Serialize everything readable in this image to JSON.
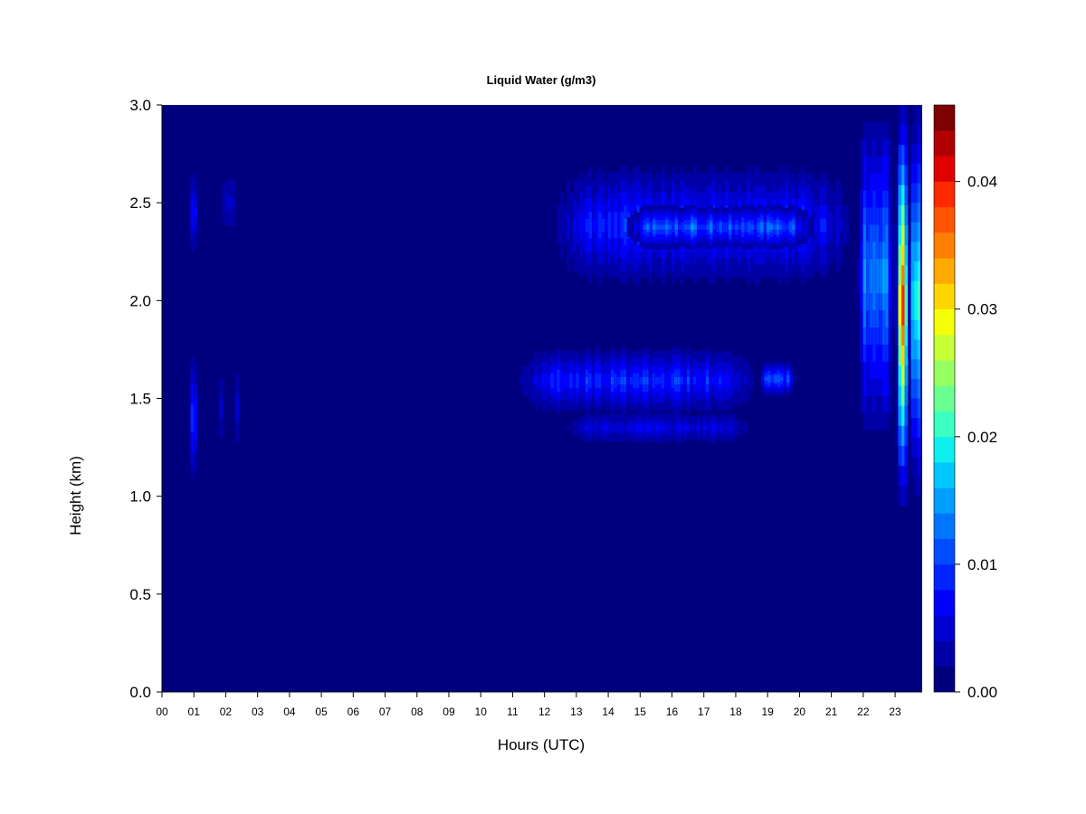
{
  "chart_data": {
    "type": "heatmap",
    "title": "Liquid Water (g/m3)",
    "xlabel": "Hours (UTC)",
    "ylabel": "Height (km)",
    "xlim": [
      0,
      23.85
    ],
    "ylim": [
      0,
      3.0
    ],
    "x_ticks": [
      "00",
      "01",
      "02",
      "03",
      "04",
      "05",
      "06",
      "07",
      "08",
      "09",
      "10",
      "11",
      "12",
      "13",
      "14",
      "15",
      "16",
      "17",
      "18",
      "19",
      "20",
      "21",
      "22",
      "23"
    ],
    "y_ticks": [
      "0.0",
      "0.5",
      "1.0",
      "1.5",
      "2.0",
      "2.5",
      "3.0"
    ],
    "colorbar": {
      "min": 0.0,
      "max": 0.046,
      "ticks": [
        "0.00",
        "0.01",
        "0.02",
        "0.03",
        "0.04"
      ],
      "colors": [
        "#00007F",
        "#0000A6",
        "#0000D2",
        "#0000FF",
        "#0024FF",
        "#004DFF",
        "#0076FF",
        "#009EFF",
        "#00C8FF",
        "#0DF0EE",
        "#3BFFC0",
        "#6AFF91",
        "#98FF63",
        "#C6FF35",
        "#F5FF07",
        "#FFD500",
        "#FFAA00",
        "#FF7F00",
        "#FF5500",
        "#FF2A00",
        "#E10000",
        "#B10000",
        "#7F0000"
      ]
    },
    "features": [
      {
        "x": [
          0.8,
          1.05
        ],
        "y": [
          1.05,
          1.75
        ],
        "peak": 0.013
      },
      {
        "x": [
          0.8,
          1.05
        ],
        "y": [
          2.2,
          2.7
        ],
        "peak": 0.01
      },
      {
        "x": [
          1.7,
          1.85
        ],
        "y": [
          1.2,
          1.7
        ],
        "peak": 0.008
      },
      {
        "x": [
          2.2,
          2.35
        ],
        "y": [
          1.2,
          1.7
        ],
        "peak": 0.008
      },
      {
        "x": [
          1.8,
          2.3
        ],
        "y": [
          2.3,
          2.7
        ],
        "peak": 0.006
      },
      {
        "x": [
          12.2,
          21.7
        ],
        "y": [
          2.05,
          2.72
        ],
        "peak": 0.012
      },
      {
        "x": [
          14.5,
          20.5
        ],
        "y": [
          2.25,
          2.5
        ],
        "peak": 0.016
      },
      {
        "x": [
          11.0,
          18.7
        ],
        "y": [
          1.4,
          1.78
        ],
        "peak": 0.012
      },
      {
        "x": [
          18.7,
          19.8
        ],
        "y": [
          1.5,
          1.7
        ],
        "peak": 0.014
      },
      {
        "x": [
          12.5,
          18.5
        ],
        "y": [
          1.25,
          1.45
        ],
        "peak": 0.008
      },
      {
        "x": [
          21.8,
          22.9
        ],
        "y": [
          1.25,
          3.0
        ],
        "peak": 0.018
      },
      {
        "x": [
          23.0,
          23.35
        ],
        "y": [
          0.95,
          3.0
        ],
        "peak": 0.042
      },
      {
        "x": [
          23.4,
          23.8
        ],
        "y": [
          1.0,
          3.0
        ],
        "peak": 0.024
      }
    ]
  }
}
